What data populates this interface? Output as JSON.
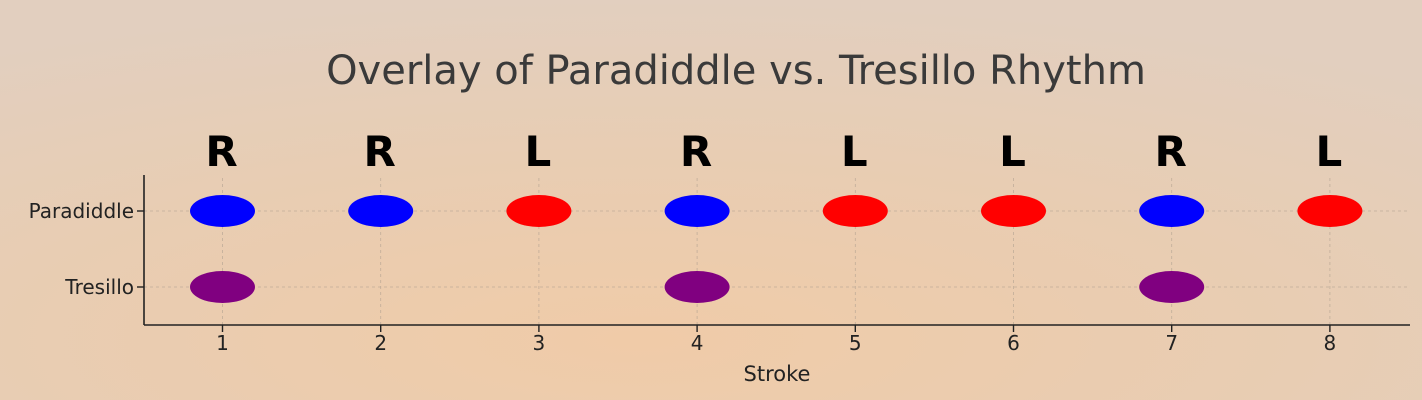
{
  "chart_data": {
    "type": "scatter",
    "title": "Overlay of Paradiddle vs. Tresillo Rhythm",
    "xlabel": "Stroke",
    "ylabel": "",
    "x_ticks": [
      1,
      2,
      3,
      4,
      5,
      6,
      7,
      8
    ],
    "y_categories": [
      "Paradiddle",
      "Tresillo"
    ],
    "xlim": [
      0.5,
      8.5
    ],
    "grid": true,
    "series": [
      {
        "name": "Paradiddle",
        "x": [
          1,
          2,
          3,
          4,
          5,
          6,
          7,
          8
        ],
        "sticking": [
          "R",
          "R",
          "L",
          "R",
          "L",
          "L",
          "R",
          "L"
        ],
        "colors": [
          "#0000ff",
          "#0000ff",
          "#ff0000",
          "#0000ff",
          "#ff0000",
          "#ff0000",
          "#0000ff",
          "#ff0000"
        ]
      },
      {
        "name": "Tresillo",
        "x": [
          1,
          4,
          7
        ],
        "colors": [
          "#800080",
          "#800080",
          "#800080"
        ]
      }
    ]
  },
  "colors": {
    "right_hand": "#0000ff",
    "left_hand": "#ff0000",
    "tresillo": "#800080",
    "text": "#3a3a3a"
  }
}
